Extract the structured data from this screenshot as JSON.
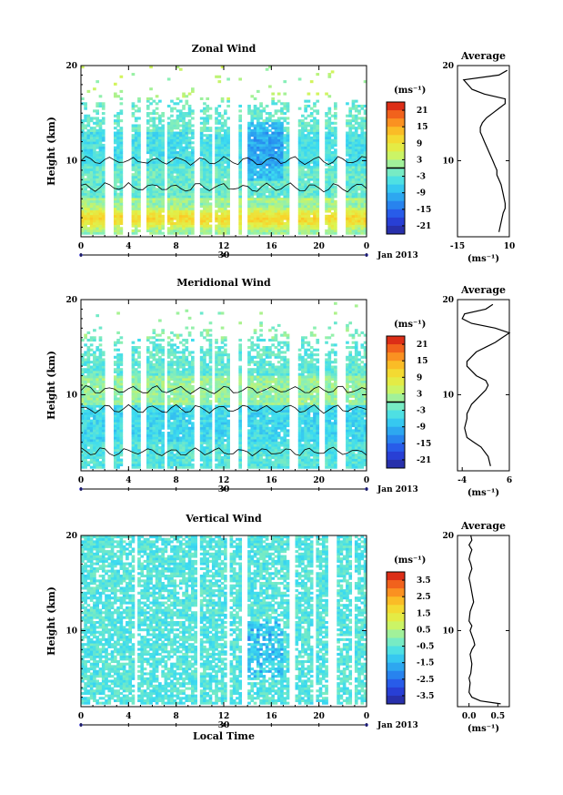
{
  "figure": {
    "date_label": "Jan 2013",
    "xlabel_bottom": "Local Time",
    "day_label": "30",
    "unit_label": "(ms⁻¹)",
    "height_label": "Height (km)",
    "average_title": "Average"
  },
  "chart_data": [
    {
      "type": "heatmap",
      "title": "Zonal Wind",
      "ylabel": "Height (km)",
      "xlabel": "Jan 2013",
      "x_ticks": [
        "0",
        "4",
        "8",
        "12",
        "16",
        "20",
        "0"
      ],
      "xlim": [
        0,
        24
      ],
      "ylim": [
        2,
        20
      ],
      "y_ticks": [
        "10",
        "20"
      ],
      "colorbar": {
        "label": "(ms⁻¹)",
        "ticks": [
          "21",
          "15",
          "9",
          "3",
          "-3",
          "-9",
          "-15",
          "-21"
        ],
        "range": [
          -24,
          24
        ]
      },
      "data_gaps_hours": [
        [
          2.1,
          2.7
        ],
        [
          3.6,
          4.3
        ],
        [
          5.0,
          5.4
        ],
        [
          7.0,
          7.3
        ],
        [
          9.5,
          10.1
        ],
        [
          11.0,
          11.3
        ],
        [
          12.6,
          13.3
        ],
        [
          13.5,
          14.0
        ],
        [
          17.5,
          18.2
        ],
        [
          20.1,
          20.6
        ],
        [
          21.4,
          22.3
        ]
      ],
      "zero_contour_heights_km": [
        10.0,
        7.2
      ]
    },
    {
      "type": "line",
      "title": "Average",
      "xlabel": "(ms⁻¹)",
      "x_ticks": [
        "-15",
        "10"
      ],
      "y_ticks": [
        "10",
        "20"
      ],
      "xlim": [
        -15,
        10
      ],
      "ylim": [
        2,
        20
      ],
      "x": [
        5,
        6,
        7,
        8,
        8,
        7,
        6,
        5,
        4,
        4,
        3,
        2,
        1,
        0,
        -1,
        -2,
        -3,
        -4,
        -4,
        -3,
        -1,
        2,
        5,
        8,
        8,
        -2,
        -8,
        -10,
        -12,
        5,
        9
      ],
      "y": [
        2.5,
        3.5,
        4.5,
        5.0,
        5.5,
        6.5,
        7.5,
        8.0,
        8.5,
        9.0,
        9.5,
        10.0,
        10.5,
        11.0,
        11.5,
        12.0,
        12.5,
        13.0,
        13.5,
        14.0,
        14.5,
        15.0,
        15.5,
        16.0,
        16.5,
        17.0,
        17.5,
        18.0,
        18.5,
        19.0,
        19.5
      ]
    },
    {
      "type": "heatmap",
      "title": "Meridional Wind",
      "ylabel": "Height (km)",
      "xlabel": "Jan 2013",
      "x_ticks": [
        "0",
        "4",
        "8",
        "12",
        "16",
        "20",
        "0"
      ],
      "xlim": [
        0,
        24
      ],
      "ylim": [
        2,
        20
      ],
      "y_ticks": [
        "10",
        "20"
      ],
      "colorbar": {
        "label": "(ms⁻¹)",
        "ticks": [
          "21",
          "15",
          "9",
          "3",
          "-3",
          "-9",
          "-15",
          "-21"
        ],
        "range": [
          -24,
          24
        ]
      },
      "data_gaps_hours": [
        [
          2.1,
          2.7
        ],
        [
          3.6,
          4.3
        ],
        [
          5.0,
          5.4
        ],
        [
          7.0,
          7.3
        ],
        [
          9.5,
          10.1
        ],
        [
          11.0,
          11.3
        ],
        [
          12.6,
          13.3
        ],
        [
          13.5,
          14.0
        ],
        [
          17.5,
          18.2
        ],
        [
          20.1,
          20.6
        ],
        [
          21.4,
          22.3
        ]
      ],
      "zero_contour_heights_km": [
        10.5,
        8.5,
        4.0
      ]
    },
    {
      "type": "line",
      "title": "Average",
      "xlabel": "(ms⁻¹)",
      "x_ticks": [
        "-4",
        "6"
      ],
      "y_ticks": [
        "10",
        "20"
      ],
      "xlim": [
        -5,
        6
      ],
      "ylim": [
        2,
        20
      ],
      "x": [
        2,
        1.5,
        0,
        -1.5,
        -3,
        -3.5,
        -3,
        -3,
        -2.5,
        -2,
        -1,
        0,
        1,
        1.5,
        1,
        -1,
        -2,
        -3,
        -3,
        -2,
        -1,
        1,
        3,
        4.5,
        6,
        3,
        -2,
        -4,
        -3.5,
        1,
        2.5
      ],
      "y": [
        2.5,
        3.5,
        4.5,
        5.0,
        5.5,
        6.5,
        7.5,
        8.0,
        8.5,
        9.0,
        9.5,
        10.0,
        10.5,
        11.0,
        11.5,
        12.0,
        12.5,
        13.0,
        13.5,
        14.0,
        14.5,
        15.0,
        15.5,
        16.0,
        16.5,
        17.0,
        17.5,
        18.0,
        18.5,
        19.0,
        19.5
      ]
    },
    {
      "type": "heatmap",
      "title": "Vertical Wind",
      "ylabel": "Height (km)",
      "xlabel": "Local Time",
      "x_ticks": [
        "0",
        "4",
        "8",
        "12",
        "16",
        "20",
        "0"
      ],
      "xlim": [
        0,
        24
      ],
      "ylim": [
        2,
        20
      ],
      "y_ticks": [
        "10",
        "20"
      ],
      "colorbar": {
        "label": "(ms⁻¹)",
        "ticks": [
          "3.5",
          "2.5",
          "1.5",
          "0.5",
          "-0.5",
          "-1.5",
          "-2.5",
          "-3.5"
        ],
        "range": [
          -4,
          4
        ]
      },
      "data_gaps_hours": [
        [
          2.4,
          2.6
        ],
        [
          4.6,
          4.8
        ],
        [
          5.9,
          6.1
        ],
        [
          9.8,
          9.9
        ],
        [
          12.2,
          12.4
        ],
        [
          13.6,
          13.9
        ],
        [
          17.6,
          18.1
        ],
        [
          19.6,
          19.8
        ],
        [
          20.8,
          21.4
        ],
        [
          22.8,
          23.0
        ]
      ]
    },
    {
      "type": "line",
      "title": "Average",
      "xlabel": "(ms⁻¹)",
      "x_ticks": [
        "0.0",
        "0.5"
      ],
      "y_ticks": [
        "10",
        "20"
      ],
      "xlim": [
        -0.2,
        0.7
      ],
      "ylim": [
        2,
        20
      ],
      "x": [
        0.55,
        0.2,
        0.05,
        0.0,
        0.02,
        0.0,
        0.03,
        0.05,
        0.02,
        0.05,
        0.1,
        0.08,
        0.05,
        0.02,
        0.05,
        0.0,
        0.02,
        0.05,
        0.08,
        0.05,
        0.02,
        0.0,
        0.02,
        0.05,
        0.03,
        0.0,
        0.02,
        0.05,
        0.0,
        0.05,
        0.03
      ],
      "y": [
        2.3,
        2.6,
        3.0,
        3.5,
        4.5,
        5.0,
        5.5,
        6.5,
        7.5,
        8.0,
        8.5,
        9.0,
        9.5,
        10.0,
        10.5,
        11.0,
        12.0,
        12.5,
        13.0,
        14.0,
        15.0,
        15.5,
        16.0,
        16.5,
        17.0,
        17.5,
        18.0,
        18.5,
        19.0,
        19.5,
        20.0
      ]
    }
  ]
}
